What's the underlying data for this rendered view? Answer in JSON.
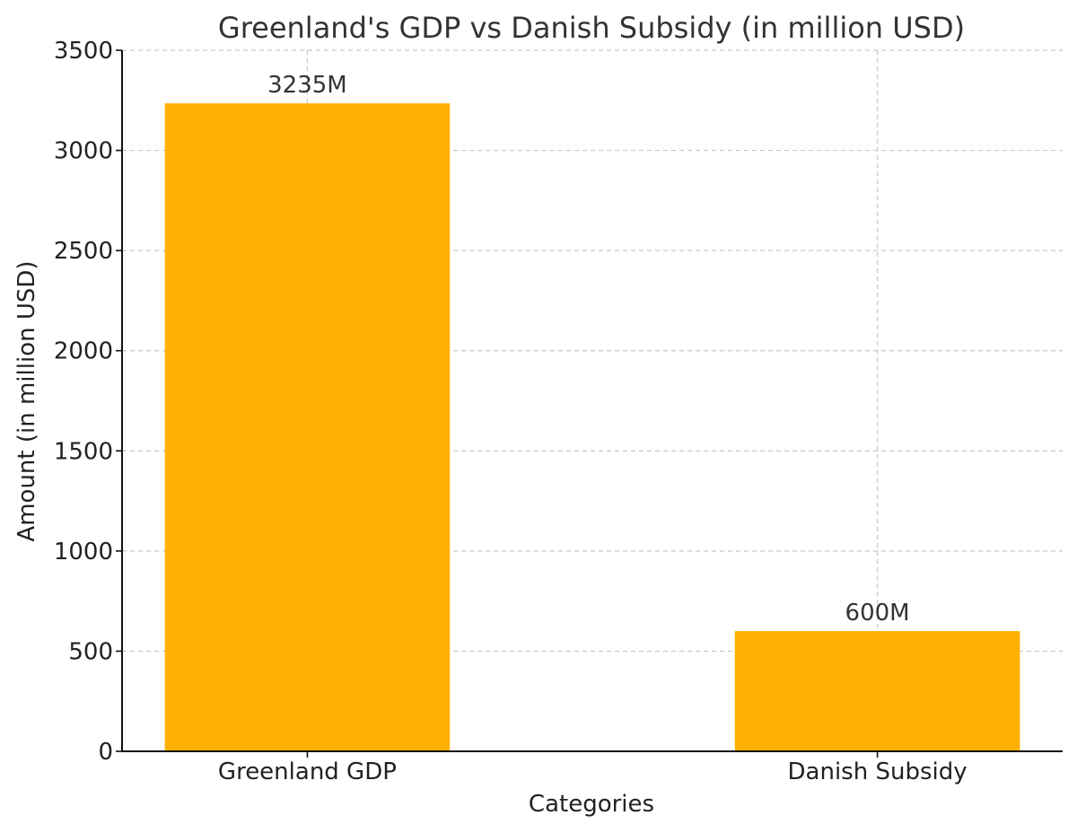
{
  "chart_data": {
    "type": "bar",
    "title": "Greenland's GDP vs Danish Subsidy (in million USD)",
    "xlabel": "Categories",
    "ylabel": "Amount (in million USD)",
    "categories": [
      "Greenland GDP",
      "Danish Subsidy"
    ],
    "values": [
      3235,
      600
    ],
    "data_labels": [
      "3235M",
      "600M"
    ],
    "ylim": [
      0,
      3500
    ],
    "yticks": [
      0,
      500,
      1000,
      1500,
      2000,
      2500,
      3000,
      3500
    ],
    "grid": true,
    "bar_color": "#FFB000"
  }
}
